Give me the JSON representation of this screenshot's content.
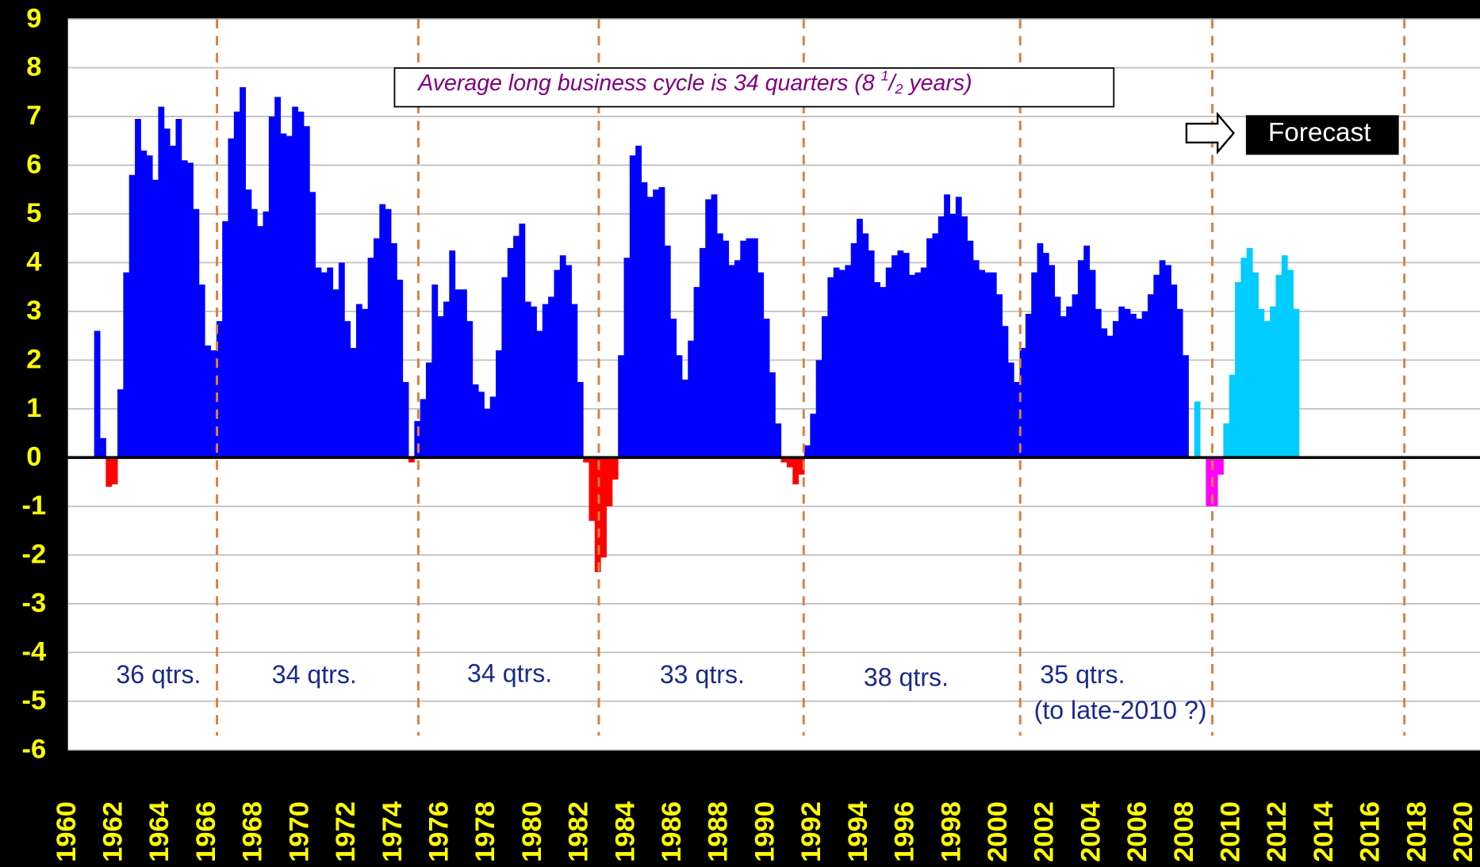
{
  "chart_data": {
    "type": "bar",
    "xlim": [
      1960,
      2020
    ],
    "xticks": [
      1960,
      1962,
      1964,
      1966,
      1968,
      1970,
      1972,
      1974,
      1976,
      1978,
      1980,
      1982,
      1984,
      1986,
      1988,
      1990,
      1992,
      1994,
      1996,
      1998,
      2000,
      2002,
      2004,
      2006,
      2008,
      2010,
      2012,
      2014,
      2016,
      2018,
      2020
    ],
    "ylim": [
      -6,
      9
    ],
    "yticks": [
      -6,
      -5,
      -4,
      -3,
      -2,
      -1,
      0,
      1,
      2,
      3,
      4,
      5,
      6,
      7,
      8,
      9
    ],
    "grid": true,
    "series": [
      {
        "color": "#0000ff",
        "negative_color": "#ff0000",
        "x": [
          1961.25,
          1961.5,
          1961.75,
          1962,
          1962.25,
          1962.5,
          1962.75,
          1963,
          1963.25,
          1963.5,
          1963.75,
          1964,
          1964.25,
          1964.5,
          1964.75,
          1965,
          1965.25,
          1965.5,
          1965.75,
          1966,
          1966.25,
          1966.5,
          1966.75,
          1967,
          1967.25,
          1967.5,
          1967.75,
          1968,
          1968.25,
          1968.5,
          1968.75,
          1969,
          1969.25,
          1969.5,
          1969.75,
          1970,
          1970.25,
          1970.5,
          1970.75,
          1971,
          1971.25,
          1971.5,
          1971.75,
          1972,
          1972.25,
          1972.5,
          1972.75,
          1973,
          1973.25,
          1973.5,
          1973.75,
          1974,
          1974.25,
          1974.5,
          1974.75,
          1975,
          1975.25,
          1975.5,
          1975.75,
          1976,
          1976.25,
          1976.5,
          1976.75,
          1977,
          1977.25,
          1977.5,
          1977.75,
          1978,
          1978.25,
          1978.5,
          1978.75,
          1979,
          1979.25,
          1979.5,
          1979.75,
          1980,
          1980.25,
          1980.5,
          1980.75,
          1981,
          1981.25,
          1981.5,
          1981.75,
          1982,
          1982.25,
          1982.5,
          1982.75,
          1983,
          1983.25,
          1983.5,
          1983.75,
          1984,
          1984.25,
          1984.5,
          1984.75,
          1985,
          1985.25,
          1985.5,
          1985.75,
          1986,
          1986.25,
          1986.5,
          1986.75,
          1987,
          1987.25,
          1987.5,
          1987.75,
          1988,
          1988.25,
          1988.5,
          1988.75,
          1989,
          1989.25,
          1989.5,
          1989.75,
          1990,
          1990.25,
          1990.5,
          1990.75,
          1991,
          1991.25,
          1991.5,
          1991.75,
          1992,
          1992.25,
          1992.5,
          1992.75,
          1993,
          1993.25,
          1993.5,
          1993.75,
          1994,
          1994.25,
          1994.5,
          1994.75,
          1995,
          1995.25,
          1995.5,
          1995.75,
          1996,
          1996.25,
          1996.5,
          1996.75,
          1997,
          1997.25,
          1997.5,
          1997.75,
          1998,
          1998.25,
          1998.5,
          1998.75,
          1999,
          1999.25,
          1999.5,
          1999.75,
          2000,
          2000.25,
          2000.5,
          2000.75,
          2001,
          2001.25,
          2001.5,
          2001.75,
          2002,
          2002.25,
          2002.5,
          2002.75,
          2003,
          2003.25,
          2003.5,
          2003.75,
          2004,
          2004.25,
          2004.5,
          2004.75,
          2005,
          2005.25,
          2005.5,
          2005.75,
          2006,
          2006.25,
          2006.5,
          2006.75,
          2007,
          2007.25,
          2007.5,
          2007.75,
          2008
        ],
        "values": [
          2.6,
          0.4,
          -0.6,
          -0.55,
          1.4,
          3.8,
          5.8,
          6.95,
          6.3,
          6.2,
          5.7,
          7.2,
          6.75,
          6.4,
          6.95,
          6.1,
          6.05,
          5.1,
          3.55,
          2.3,
          2.2,
          2.8,
          4.85,
          6.55,
          7.1,
          7.6,
          5.5,
          5.1,
          4.75,
          5.05,
          7.0,
          7.4,
          6.65,
          6.6,
          7.2,
          7.1,
          6.8,
          5.45,
          3.9,
          3.8,
          3.9,
          3.45,
          4.0,
          2.8,
          2.25,
          3.15,
          3.05,
          4.1,
          4.5,
          5.2,
          5.1,
          4.4,
          3.65,
          1.55,
          -0.1,
          0.75,
          1.2,
          1.95,
          3.55,
          2.9,
          3.2,
          4.25,
          3.45,
          3.45,
          2.8,
          1.5,
          1.35,
          1.0,
          1.25,
          2.2,
          3.7,
          4.3,
          4.55,
          4.8,
          3.2,
          3.1,
          2.6,
          3.15,
          3.3,
          3.85,
          4.15,
          3.95,
          3.15,
          1.55,
          -0.1,
          -1.3,
          -2.35,
          -2.05,
          -1.0,
          -0.45,
          2.1,
          4.1,
          6.2,
          6.4,
          5.65,
          5.35,
          5.5,
          5.55,
          4.35,
          2.85,
          2.1,
          1.6,
          2.4,
          3.5,
          4.3,
          5.3,
          5.4,
          4.6,
          4.45,
          3.95,
          4.05,
          4.45,
          4.5,
          4.5,
          3.8,
          2.85,
          1.75,
          0.7,
          -0.1,
          -0.2,
          -0.55,
          -0.35,
          0.25,
          0.9,
          2.0,
          2.9,
          3.7,
          3.9,
          3.85,
          3.95,
          4.4,
          4.9,
          4.6,
          4.25,
          3.6,
          3.5,
          3.9,
          4.15,
          4.25,
          4.2,
          3.75,
          3.8,
          3.9,
          4.5,
          4.6,
          4.95,
          5.4,
          5.0,
          5.35,
          4.95,
          4.45,
          4.05,
          3.85,
          3.8,
          3.8,
          3.35,
          2.7,
          1.95,
          1.55,
          2.25,
          2.95,
          3.8,
          4.4,
          4.2,
          3.95,
          3.3,
          2.9,
          3.1,
          3.35,
          4.05,
          4.35,
          3.85,
          3.05,
          2.65,
          2.5,
          2.8,
          3.1,
          3.05,
          2.95,
          2.85,
          3.0,
          3.35,
          3.75,
          4.05,
          3.95,
          3.55,
          3.05,
          2.1
        ]
      },
      {
        "color": "#00ccff",
        "negative_color": "#ff00ff",
        "x": [
          2008.5,
          2008.75,
          2009,
          2009.25,
          2009.5,
          2009.75,
          2010,
          2010.25,
          2010.5,
          2010.75,
          2011,
          2011.25,
          2011.5,
          2011.75,
          2012,
          2012.25,
          2012.5,
          2012.75
        ],
        "values": [
          1.15,
          null,
          -1.0,
          -1.0,
          -0.35,
          0.7,
          1.7,
          3.6,
          4.1,
          4.3,
          3.8,
          3.05,
          2.8,
          3.1,
          3.75,
          4.15,
          3.85,
          3.05
        ]
      }
    ],
    "cycle_lines": [
      1966.4,
      1975.05,
      1982.8,
      1991.6,
      2000.9,
      2009.15,
      2017.4
    ],
    "cycle_labels": [
      "36 qtrs.",
      "34 qtrs.",
      "34 qtrs.",
      "33 qtrs.",
      "38 qtrs.",
      "35 qtrs.",
      "(to late-2010 ?)"
    ],
    "note_parts": [
      "Average long business cycle is 34 quarters (8 ",
      "1",
      "/",
      "2",
      " years)"
    ],
    "forecast_label": "Forecast"
  }
}
